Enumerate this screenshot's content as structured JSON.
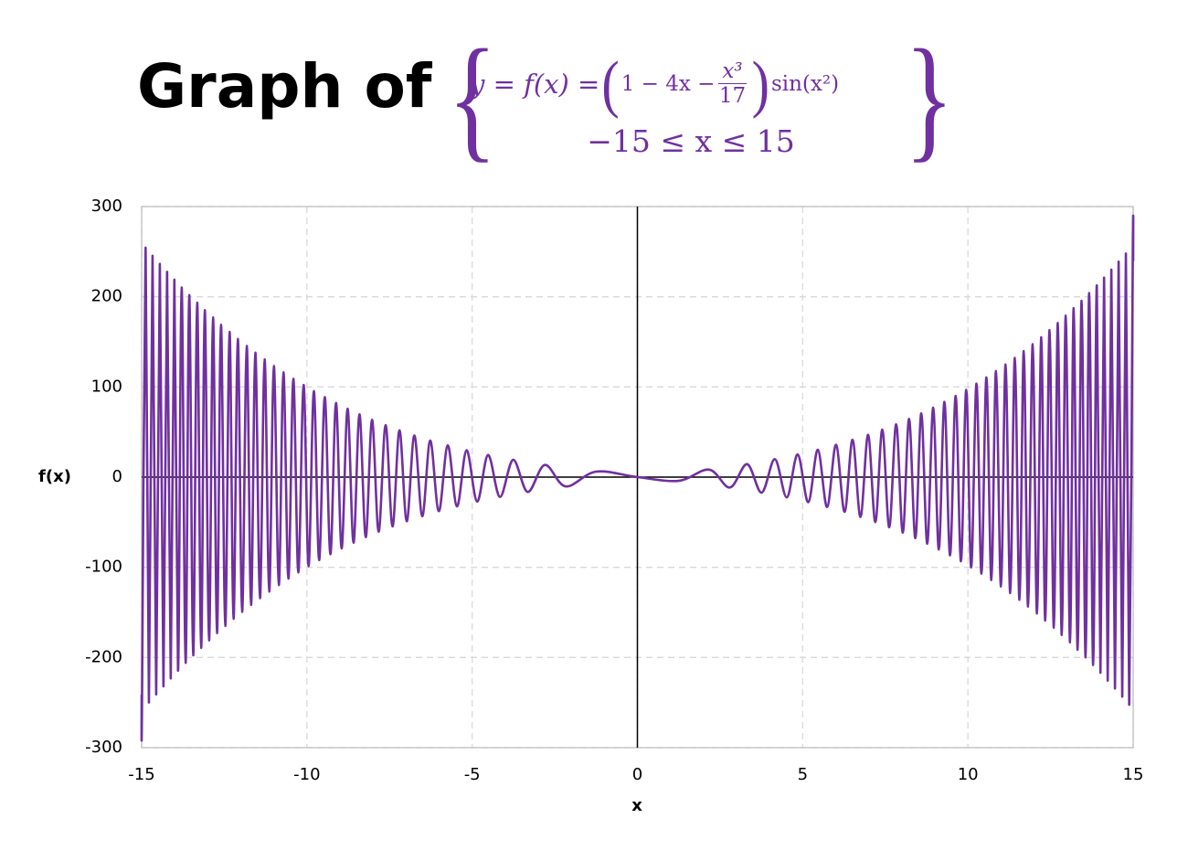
{
  "chart_data": {
    "type": "line",
    "title": "Graph of",
    "formula": {
      "lhs": "y = f(x) =",
      "factor": "1 − 4x −",
      "numerator": "x³",
      "denominator": "17",
      "tail": "sin(x²)",
      "domain": "−15 ≤ x ≤ 15"
    },
    "x_label": "x",
    "y_label": "f(x)",
    "color": "#7030a0",
    "grid": true,
    "xlim": [
      -15,
      15
    ],
    "xticks": [
      -15,
      -10,
      -5,
      0,
      5,
      10,
      15
    ],
    "ylim": [
      -300,
      300
    ],
    "yticks": [
      -300,
      -200,
      -100,
      0,
      100,
      200,
      300
    ],
    "x": [
      -15,
      -14.99,
      -14.88,
      -14.78,
      -14.67,
      -14.56,
      -14.45,
      -14.34,
      -14.23,
      -14.12,
      -14.01,
      -13.9,
      -13.79,
      -13.67,
      -13.56,
      -13.44,
      -13.32,
      -13.2,
      -13.09,
      -12.96,
      -12.84,
      -12.72,
      -12.6,
      -12.47,
      -12.34,
      -12.22,
      -12.09,
      -11.96,
      -11.82,
      -11.69,
      -11.56,
      -11.42,
      -11.28,
      -11.14,
      -11,
      -10.85,
      -10.71,
      -10.56,
      -10.41,
      -10.26,
      -10.1,
      -9.95,
      -9.79,
      -9.63,
      -9.46,
      -9.29,
      -9.12,
      -8.95,
      -8.77,
      -8.59,
      -8.41,
      -8.22,
      -8.03,
      -7.83,
      -7.62,
      -7.41,
      -7.2,
      -6.98,
      -6.75,
      -6.51,
      -6.27,
      -6.01,
      -5.74,
      -5.46,
      -5.17,
      -4.85,
      -4.52,
      -4.16,
      -3.76,
      -3.32,
      -2.8,
      -2.17,
      -1.25,
      0,
      1.25,
      2.17,
      2.8,
      3.32,
      3.76,
      4.16,
      4.52,
      4.85,
      5.17,
      5.46,
      5.74,
      6.01,
      6.27,
      6.51,
      6.75,
      6.98,
      7.2,
      7.41,
      7.62,
      7.83,
      8.03,
      8.22,
      8.41,
      8.59,
      8.77,
      8.95,
      9.12,
      9.29,
      9.46,
      9.63,
      9.79,
      9.95,
      10.1,
      10.26,
      10.41,
      10.56,
      10.71,
      10.85,
      11,
      11.14,
      11.28,
      11.42,
      11.56,
      11.69,
      11.82,
      11.96,
      12.09,
      12.22,
      12.34,
      12.47,
      12.6,
      12.72,
      12.84,
      12.96,
      13.09,
      13.2,
      13.32,
      13.44,
      13.56,
      13.67,
      13.79,
      13.9,
      14.01,
      14.12,
      14.23,
      14.34,
      14.45,
      14.56,
      14.67,
      14.78,
      14.88,
      14.99,
      15
    ],
    "values": [
      -241.3,
      -259.0,
      254.4,
      -249.9,
      245.4,
      -240.9,
      236.4,
      -232.0,
      227.6,
      -223.2,
      218.9,
      -214.6,
      210.3,
      -206.0,
      201.8,
      -197.6,
      193.4,
      -189.3,
      185.1,
      -181.0,
      177.0,
      -172.9,
      168.9,
      -165.0,
      161.0,
      -157.1,
      153.2,
      -149.4,
      145.5,
      -141.7,
      138.0,
      -134.2,
      130.5,
      -126.9,
      123.2,
      -119.6,
      116.1,
      -112.5,
      109.0,
      -105.6,
      102.1,
      -98.7,
      95.3,
      -92.0,
      88.7,
      -85.4,
      82.2,
      -79.0,
      75.8,
      -72.7,
      69.6,
      -66.5,
      63.5,
      -60.5,
      57.6,
      -54.6,
      51.8,
      -48.9,
      46.1,
      -43.3,
      40.5,
      -37.8,
      35.1,
      -32.4,
      29.8,
      -27.1,
      24.5,
      -21.9,
      19.2,
      -16.4,
      13.5,
      -10.3,
      6.1,
      0,
      -4.1,
      8.3,
      -11.5,
      14.4,
      -17.2,
      19.9,
      -22.5,
      25.1,
      -27.8,
      30.4,
      -33.1,
      35.8,
      -38.5,
      41.3,
      -44.1,
      46.9,
      -49.8,
      52.6,
      -55.6,
      58.5,
      -61.5,
      64.5,
      -67.6,
      70.7,
      -73.8,
      77.0,
      -80.2,
      83.4,
      -86.7,
      90.0,
      -93.3,
      96.7,
      -100.1,
      103.6,
      -107.0,
      110.5,
      -114.1,
      117.6,
      -121.2,
      124.9,
      -128.5,
      132.2,
      -136.0,
      139.7,
      -143.5,
      147.4,
      -151.2,
      155.1,
      -159.0,
      163.0,
      -166.9,
      170.9,
      -175.0,
      179.0,
      -183.1,
      187.3,
      -191.4,
      195.6,
      -199.8,
      204.0,
      -208.3,
      212.6,
      -216.9,
      221.2,
      -225.6,
      230.0,
      -234.4,
      238.9,
      -243.4,
      247.9,
      -252.4,
      257.0,
      239.5
    ]
  }
}
